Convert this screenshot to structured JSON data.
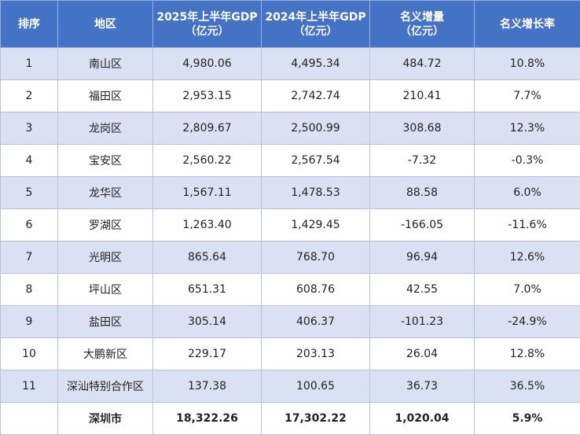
{
  "table": {
    "headers": [
      {
        "line1": "排序",
        "line2": ""
      },
      {
        "line1": "地区",
        "line2": ""
      },
      {
        "line1": "2025年上半年GDP",
        "line2": "（亿元）"
      },
      {
        "line1": "2024年上半年GDP",
        "line2": "（亿元）"
      },
      {
        "line1": "名义增量",
        "line2": "（亿元）"
      },
      {
        "line1": "名义增长率",
        "line2": ""
      }
    ],
    "rows": [
      [
        "1",
        "南山区",
        "4,980.06",
        "4,495.34",
        "484.72",
        "10.8%"
      ],
      [
        "2",
        "福田区",
        "2,953.15",
        "2,742.74",
        "210.41",
        "7.7%"
      ],
      [
        "3",
        "龙岗区",
        "2,809.67",
        "2,500.99",
        "308.68",
        "12.3%"
      ],
      [
        "4",
        "宝安区",
        "2,560.22",
        "2,567.54",
        "-7.32",
        "-0.3%"
      ],
      [
        "5",
        "龙华区",
        "1,567.11",
        "1,478.53",
        "88.58",
        "6.0%"
      ],
      [
        "6",
        "罗湖区",
        "1,263.40",
        "1,429.45",
        "-166.05",
        "-11.6%"
      ],
      [
        "7",
        "光明区",
        "865.64",
        "768.70",
        "96.94",
        "12.6%"
      ],
      [
        "8",
        "坪山区",
        "651.31",
        "608.76",
        "42.55",
        "7.0%"
      ],
      [
        "9",
        "盐田区",
        "305.14",
        "406.37",
        "-101.23",
        "-24.9%"
      ],
      [
        "10",
        "大鹏新区",
        "229.17",
        "203.13",
        "26.04",
        "12.8%"
      ],
      [
        "11",
        "深汕特别合作区",
        "137.38",
        "100.65",
        "36.73",
        "36.5%"
      ]
    ],
    "total": [
      "",
      "深圳市",
      "18,322.26",
      "17,302.22",
      "1,020.04",
      "5.9%"
    ]
  },
  "colors": {
    "header_bg": "#4472c4",
    "band_bg": "#d9e1f2"
  }
}
